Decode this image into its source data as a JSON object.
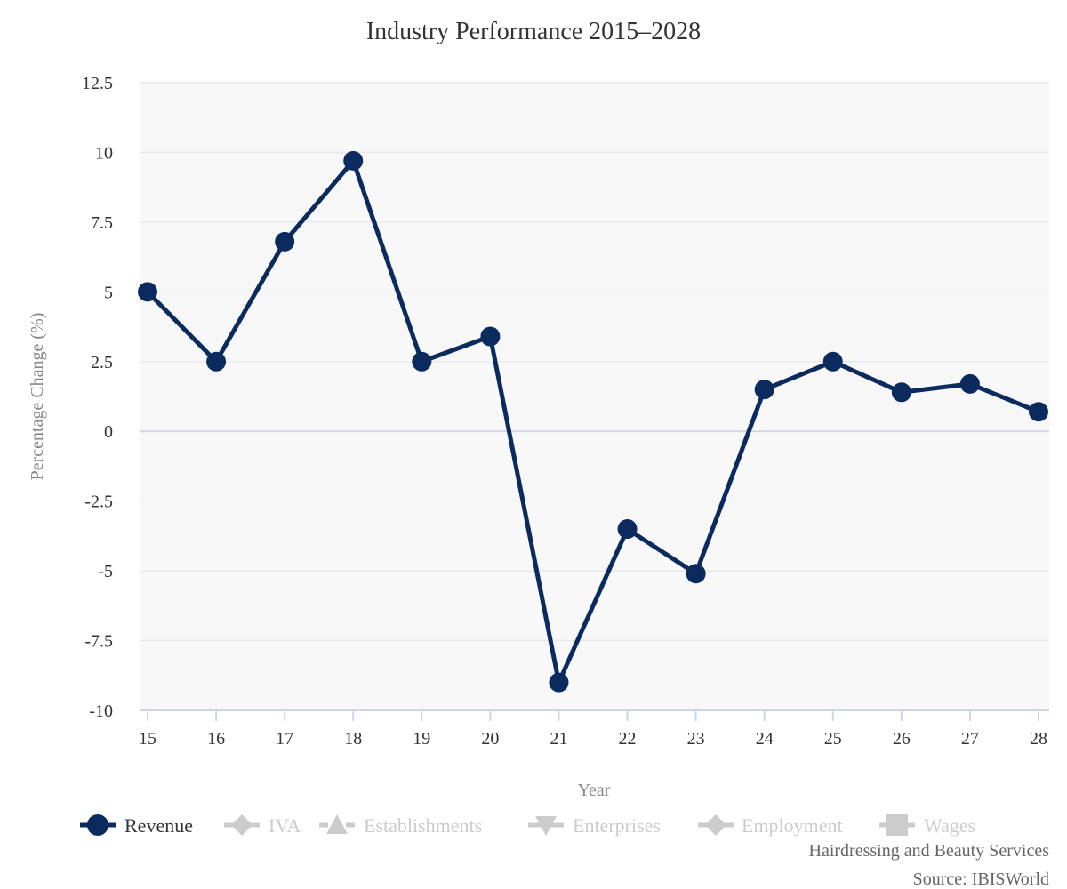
{
  "chart_data": {
    "type": "line",
    "title": "Industry Performance 2015–2028",
    "xlabel": "Year",
    "ylabel": "Percentage Change (%)",
    "categories": [
      "15",
      "16",
      "17",
      "18",
      "19",
      "20",
      "21",
      "22",
      "23",
      "24",
      "25",
      "26",
      "27",
      "28"
    ],
    "y_ticks": [
      "12.5",
      "10",
      "7.5",
      "5",
      "2.5",
      "0",
      "-2.5",
      "-5",
      "-7.5",
      "-10"
    ],
    "ylim": [
      -10,
      12.5
    ],
    "grid": true,
    "legend_placement": "bottom-left",
    "series": [
      {
        "name": "Revenue",
        "color": "#0b2b5e",
        "visible": true,
        "values": [
          5.0,
          2.5,
          6.8,
          9.7,
          2.5,
          3.4,
          -9.0,
          -3.5,
          -5.1,
          1.5,
          2.5,
          1.4,
          1.7,
          0.7
        ]
      },
      {
        "name": "IVA",
        "visible": false,
        "marker": "diamond"
      },
      {
        "name": "Establishments",
        "visible": false,
        "marker": "triangle"
      },
      {
        "name": "Enterprises",
        "visible": false,
        "marker": "triangle-down"
      },
      {
        "name": "Employment",
        "visible": false,
        "marker": "diamond"
      },
      {
        "name": "Wages",
        "visible": false,
        "marker": "square"
      }
    ]
  },
  "credits": {
    "line1": "Hairdressing and Beauty Services",
    "line2": "Source: IBISWorld"
  }
}
